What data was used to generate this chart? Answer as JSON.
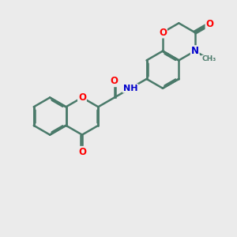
{
  "bg_color": "#ebebeb",
  "bond_color": "#4a7a6a",
  "bond_width": 1.8,
  "dbo": 0.055,
  "atom_colors": {
    "O": "#ff0000",
    "N": "#0000cc",
    "C": "#4a7a6a"
  },
  "font_size": 8.5
}
